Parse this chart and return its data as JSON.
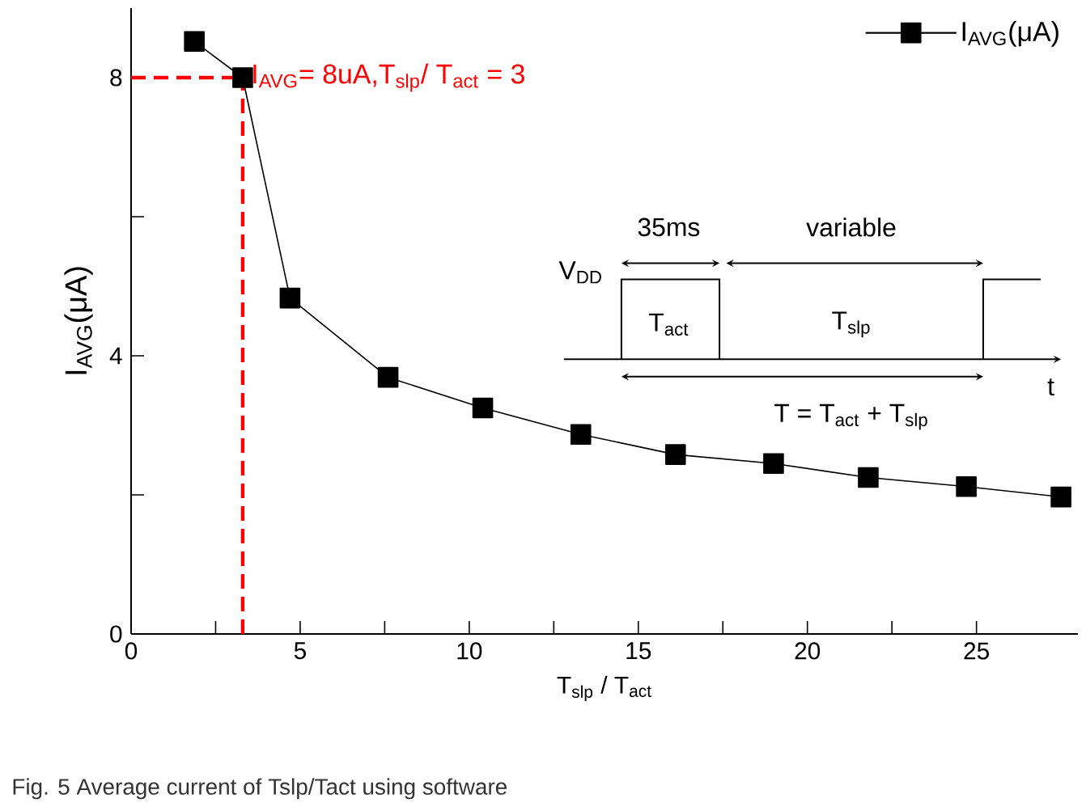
{
  "chart_data": {
    "type": "line",
    "xlabel": "T$_{slp}$ / T$_{act}$",
    "ylabel": "I$_{AVG}$(μA)",
    "x": [
      1.87,
      3.3,
      4.7,
      7.6,
      10.4,
      13.3,
      16.1,
      19.0,
      21.8,
      24.7,
      27.5
    ],
    "series": [
      {
        "name": "I$_{AVG}$(μA)",
        "color": "#000000",
        "values": [
          8.52,
          8.0,
          4.83,
          3.69,
          3.25,
          2.87,
          2.58,
          2.45,
          2.25,
          2.12,
          1.97
        ]
      }
    ],
    "xlim": [
      0,
      28
    ],
    "ylim": [
      0,
      9
    ],
    "xticks": [
      0,
      {
        "value": 2.5,
        "label": null
      },
      5,
      {
        "value": 7.5,
        "label": null
      },
      10,
      {
        "value": 12.5,
        "label": null
      },
      15,
      {
        "value": 17.5,
        "label": null
      },
      20,
      {
        "value": 22.5,
        "label": null
      },
      25
    ],
    "yticks": [
      0,
      {
        "value": 2,
        "label": null
      },
      4,
      {
        "value": 6,
        "label": null
      },
      8
    ],
    "ref_lines": [
      {
        "axis": "y",
        "value": 8,
        "color": "#ff0000",
        "line_style": "dashed"
      },
      {
        "axis": "x",
        "value": 3.3,
        "color": "#ff0000",
        "line_style": "dashed"
      }
    ],
    "annotations": [
      {
        "text": "I$_{AVG}$= 8uA,T$_{slp}$/ T$_{act}$ = 3",
        "x": 3.3,
        "y": 8
      },
      "35ms",
      "variable",
      "V$_{DD}$",
      "T$_{act}$",
      "T$_{slp}$",
      "t",
      "T =  T$_{act}$ + T$_{slp}$",
      "Fig. 5 Average current of Tslp/Tact using software"
    ],
    "legend": "top right",
    "marker": "square",
    "line_style": "solid",
    "grid": false
  }
}
